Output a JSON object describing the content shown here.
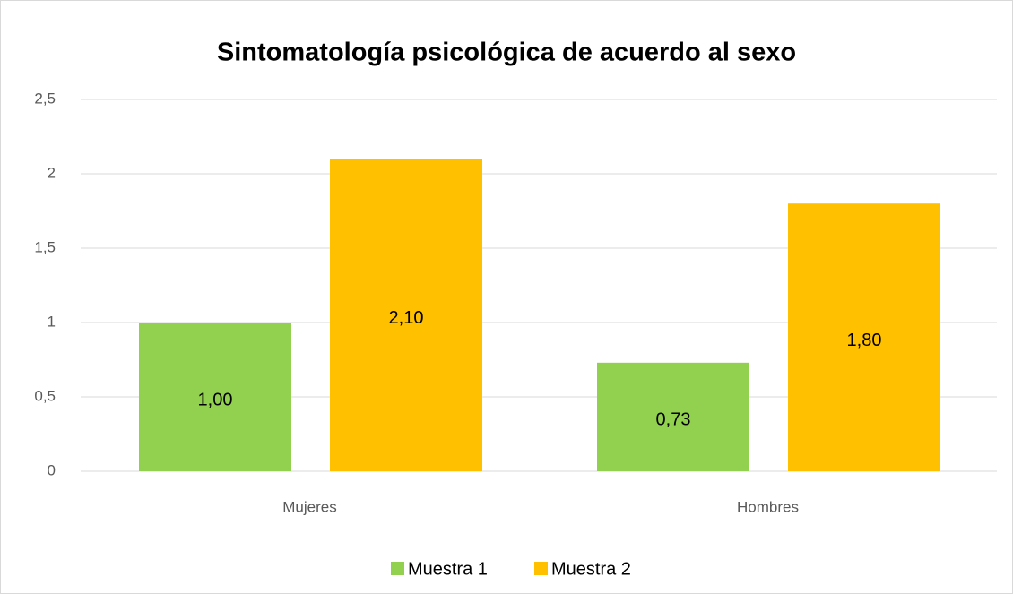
{
  "chart_data": {
    "type": "bar",
    "title": "Sintomatología psicológica de acuerdo al sexo",
    "categories": [
      "Mujeres",
      "Hombres"
    ],
    "series": [
      {
        "name": "Muestra 1",
        "color": "#92d050",
        "values": [
          1.0,
          0.73
        ],
        "value_labels": [
          "1,00",
          "0,73"
        ]
      },
      {
        "name": "Muestra 2",
        "color": "#ffc000",
        "values": [
          2.1,
          1.8
        ],
        "value_labels": [
          "2,10",
          "1,80"
        ]
      }
    ],
    "ylim": [
      0,
      2.5
    ],
    "yticks": [
      0,
      {
        "value": 0.5,
        "label": "0,5"
      },
      1,
      {
        "value": 1.5,
        "label": "1,5"
      },
      2,
      {
        "value": 2.5,
        "label": "2,5"
      }
    ],
    "grid": true,
    "legend": "bottom"
  }
}
